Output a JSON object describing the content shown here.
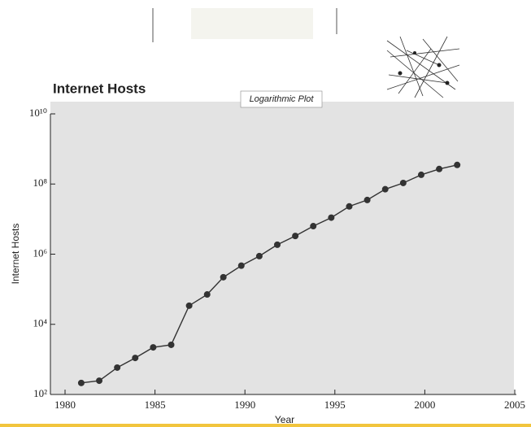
{
  "chart_data": {
    "type": "line",
    "title": "Internet Hosts",
    "subtitle": "Logarithmic Plot",
    "x_label": "Year",
    "y_label": "Internet Hosts",
    "x": [
      1980.9,
      1981.9,
      1982.9,
      1983.9,
      1984.9,
      1985.9,
      1986.9,
      1987.9,
      1988.8,
      1989.8,
      1990.8,
      1991.8,
      1992.8,
      1993.8,
      1994.8,
      1995.8,
      1996.8,
      1997.8,
      1998.8,
      1999.8,
      2000.8,
      2001.8
    ],
    "values": [
      213,
      247,
      583,
      1100,
      2200,
      2600,
      34000,
      71000,
      220000,
      470000,
      880000,
      1860000,
      3300000,
      6300000,
      11000000,
      23000000,
      35000000,
      71000000,
      107000000,
      183000000,
      268000000,
      350000000
    ],
    "color": "#333333",
    "xlim": [
      1980,
      2005
    ],
    "xticks": [
      1980,
      1985,
      1990,
      1995,
      2000,
      2005
    ],
    "ylim": [
      100,
      10000000000
    ],
    "ylog": true,
    "yticks": [
      {
        "value": 100,
        "label": "10²"
      },
      {
        "value": 10000,
        "label": "10⁴"
      },
      {
        "value": 1000000,
        "label": "10⁶"
      },
      {
        "value": 100000000,
        "label": "10⁸"
      },
      {
        "value": 10000000000,
        "label": "10¹⁰"
      }
    ]
  }
}
